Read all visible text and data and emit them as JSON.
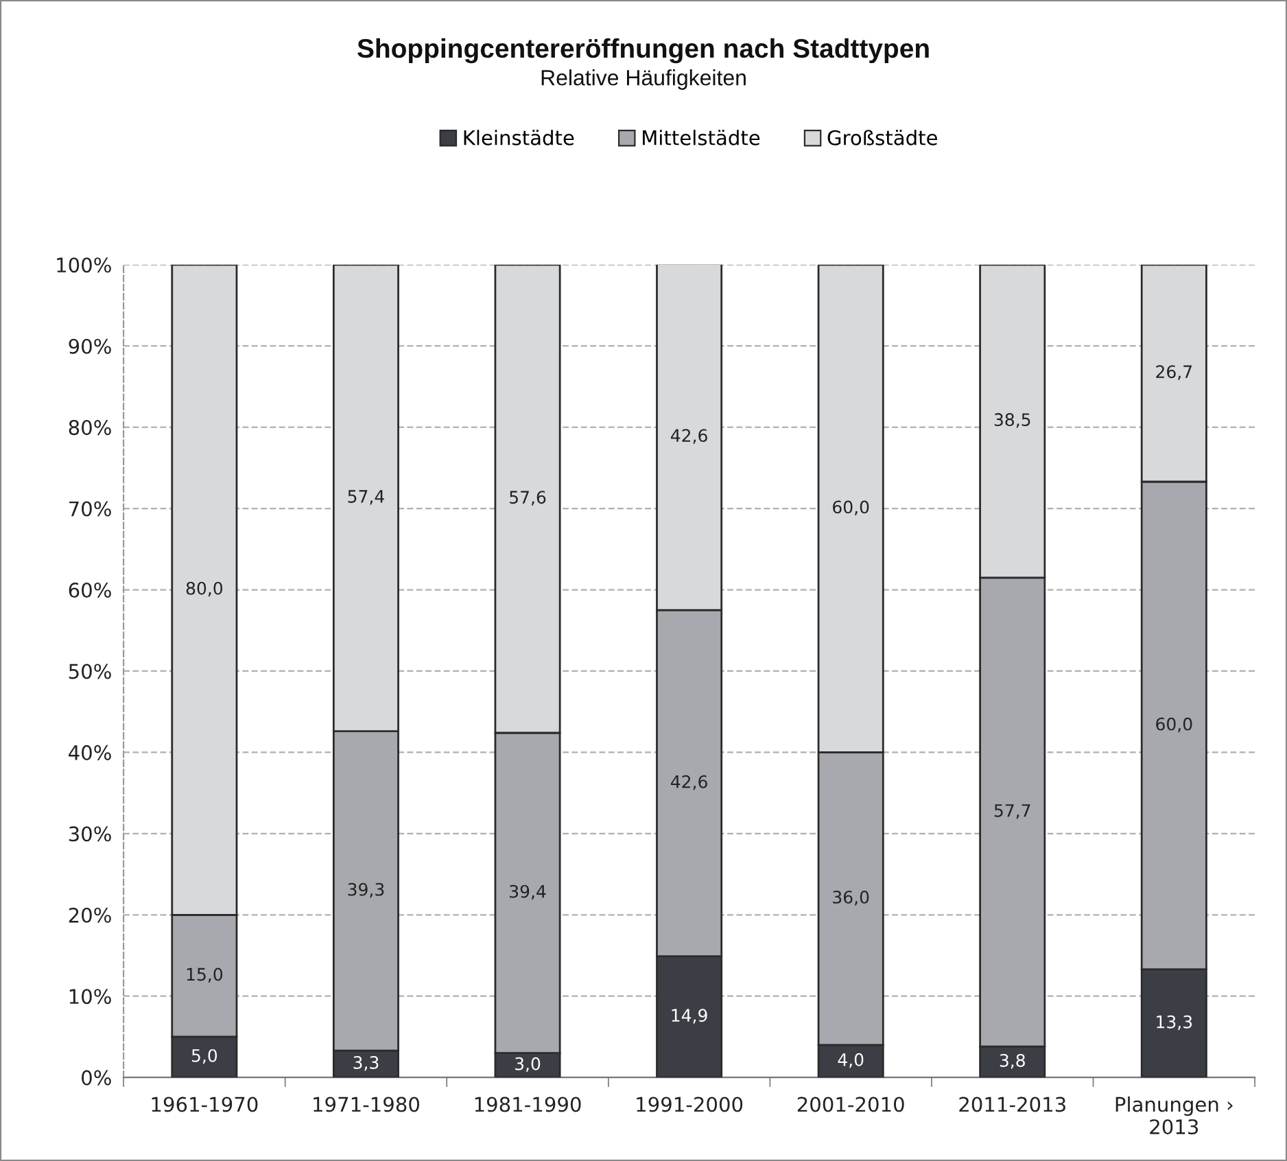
{
  "chart_data": {
    "type": "bar",
    "title": "Shoppingcentereröffnungen nach Stadttypen",
    "subtitle": "Relative Häufigkeiten",
    "categories": [
      "1961-1970",
      "1971-1980",
      "1981-1990",
      "1991-2000",
      "2001-2010",
      "2011-2013",
      "Planungen › 2013"
    ],
    "stacked": true,
    "series": [
      {
        "name": "Kleinstädte",
        "color": "#3b3e44",
        "values": [
          5.0,
          3.3,
          3.0,
          14.9,
          4.0,
          3.8,
          13.3
        ],
        "value_labels": [
          "5,0",
          "3,3",
          "3,0",
          "14,9",
          "4,0",
          "3,8",
          "13,3"
        ]
      },
      {
        "name": "Mittelstädte",
        "color": "#a7a9ae",
        "values": [
          15.0,
          39.3,
          39.4,
          42.6,
          36.0,
          57.7,
          60.0
        ],
        "value_labels": [
          "15,0",
          "39,3",
          "39,4",
          "42,6",
          "36,0",
          "57,7",
          "60,0"
        ]
      },
      {
        "name": "Großstädte",
        "color": "#d8d9db",
        "values": [
          80.0,
          57.4,
          57.6,
          42.6,
          60.0,
          38.5,
          26.7
        ],
        "value_labels": [
          "80,0",
          "57,4",
          "57,6",
          "42,6",
          "60,0",
          "38,5",
          "26,7"
        ]
      }
    ],
    "ylim": [
      0,
      100
    ],
    "yticks": [
      {
        "value": 0,
        "label": "0%"
      },
      {
        "value": 10,
        "label": "10%"
      },
      {
        "value": 20,
        "label": "20%"
      },
      {
        "value": 30,
        "label": "30%"
      },
      {
        "value": 40,
        "label": "40%"
      },
      {
        "value": 50,
        "label": "50%"
      },
      {
        "value": 60,
        "label": "60%"
      },
      {
        "value": 70,
        "label": "70%"
      },
      {
        "value": 80,
        "label": "80%"
      },
      {
        "value": 90,
        "label": "90%"
      },
      {
        "value": 100,
        "label": "100%"
      }
    ],
    "grid": "y",
    "legend": "top"
  }
}
